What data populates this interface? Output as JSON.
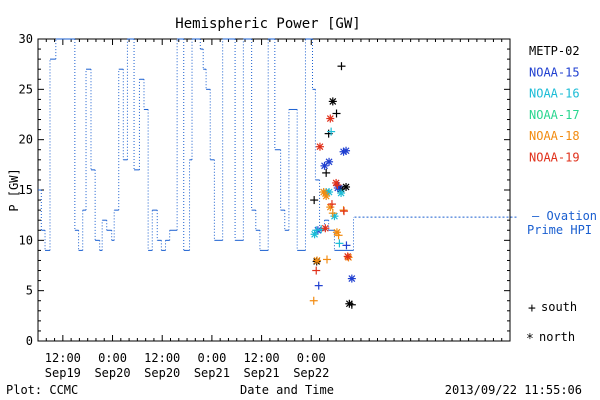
{
  "chart_data": {
    "type": "line",
    "title": "Hemispheric Power [GW]",
    "ylabel": "P [GW]",
    "xlabel": "Date and Time",
    "ylim": [
      0,
      30
    ],
    "yticks": [
      0,
      5,
      10,
      15,
      20,
      25,
      30
    ],
    "xlim_hours": [
      -6,
      108
    ],
    "x_unit": "hours after 2013/09/19 12:00",
    "xticks": [
      {
        "h": 0,
        "time": "12:00",
        "date": "Sep19"
      },
      {
        "h": 12,
        "time": "0:00",
        "date": "Sep20"
      },
      {
        "h": 24,
        "time": "12:00",
        "date": "Sep20"
      },
      {
        "h": 36,
        "time": "0:00",
        "date": "Sep21"
      },
      {
        "h": 48,
        "time": "12:00",
        "date": "Sep21"
      },
      {
        "h": 60,
        "time": "0:00",
        "date": "Sep22"
      }
    ],
    "ovation": {
      "name": "Ovation Prime HPI",
      "label_line1": "– Ovation",
      "label_line2": "Prime HPI",
      "color": "#1a5fd0",
      "current_value": 12.3,
      "steps": [
        [
          -6,
          15
        ],
        [
          -5.2,
          11
        ],
        [
          -4.3,
          9
        ],
        [
          -3.1,
          28
        ],
        [
          -1.7,
          30
        ],
        [
          0.5,
          30
        ],
        [
          2.9,
          11
        ],
        [
          3.8,
          9
        ],
        [
          4.8,
          13
        ],
        [
          5.6,
          27
        ],
        [
          6.8,
          17
        ],
        [
          7.8,
          10
        ],
        [
          8.9,
          9
        ],
        [
          9.5,
          12
        ],
        [
          10.6,
          11
        ],
        [
          11.8,
          10
        ],
        [
          12.4,
          13
        ],
        [
          13.5,
          27
        ],
        [
          14.6,
          18
        ],
        [
          15.6,
          30
        ],
        [
          17.2,
          17
        ],
        [
          18.5,
          26
        ],
        [
          19.6,
          23
        ],
        [
          20.6,
          9
        ],
        [
          21.6,
          13
        ],
        [
          22.8,
          10
        ],
        [
          23.8,
          9
        ],
        [
          24.8,
          10
        ],
        [
          25.8,
          11
        ],
        [
          27.6,
          30
        ],
        [
          29.2,
          9
        ],
        [
          30.6,
          18
        ],
        [
          31.2,
          30
        ],
        [
          33.2,
          29
        ],
        [
          33.9,
          27
        ],
        [
          34.6,
          25
        ],
        [
          35.6,
          18
        ],
        [
          36.6,
          10
        ],
        [
          38.6,
          30
        ],
        [
          41.6,
          10
        ],
        [
          43.6,
          30
        ],
        [
          45.6,
          13
        ],
        [
          46.6,
          11
        ],
        [
          47.6,
          9
        ],
        [
          49.6,
          30
        ],
        [
          51.2,
          19
        ],
        [
          52.6,
          13
        ],
        [
          53.6,
          11
        ],
        [
          54.6,
          23
        ],
        [
          56.6,
          9
        ],
        [
          58.6,
          30
        ],
        [
          60.3,
          25
        ],
        [
          61.0,
          16
        ],
        [
          62.0,
          11
        ],
        [
          63.2,
          12
        ],
        [
          64.2,
          11
        ],
        [
          65.6,
          9
        ],
        [
          70.2,
          12.3
        ]
      ]
    },
    "series": [
      {
        "name": "METP-02",
        "color": "#000000",
        "south": [
          [
            60.7,
            14.0
          ],
          [
            63.6,
            16.7
          ],
          [
            64.2,
            20.6
          ],
          [
            66.1,
            22.6
          ],
          [
            67.3,
            27.3
          ],
          [
            67.0,
            15.1
          ],
          [
            69.8,
            3.6
          ]
        ],
        "north": [
          [
            61.3,
            7.9
          ],
          [
            65.2,
            23.8
          ],
          [
            67.2,
            15.1
          ],
          [
            68.4,
            15.3
          ],
          [
            69.2,
            3.7
          ]
        ]
      },
      {
        "name": "NOAA-15",
        "color": "#1f3fd0",
        "south": [
          [
            61.8,
            5.5
          ],
          [
            66.6,
            15.4
          ],
          [
            68.5,
            9.5
          ]
        ],
        "north": [
          [
            61.6,
            11.0
          ],
          [
            63.2,
            17.4
          ],
          [
            64.3,
            17.8
          ],
          [
            66.4,
            15.2
          ],
          [
            67.8,
            18.8
          ],
          [
            68.4,
            18.9
          ],
          [
            69.8,
            6.2
          ]
        ]
      },
      {
        "name": "NOAA-16",
        "color": "#1bbcd6",
        "south": [
          [
            61.2,
            11.0
          ],
          [
            62.4,
            11.1
          ],
          [
            64.8,
            20.8
          ],
          [
            66.8,
            9.7
          ]
        ],
        "north": [
          [
            60.8,
            10.6
          ],
          [
            63.6,
            14.8
          ],
          [
            64.3,
            14.8
          ],
          [
            65.6,
            12.4
          ],
          [
            67.2,
            14.7
          ]
        ]
      },
      {
        "name": "NOAA-17",
        "color": "#2ad690",
        "south": [],
        "north": []
      },
      {
        "name": "NOAA-18",
        "color": "#f28b10",
        "south": [
          [
            60.6,
            4.0
          ],
          [
            63.8,
            8.1
          ],
          [
            65.2,
            12.7
          ],
          [
            66.6,
            10.5
          ],
          [
            67.8,
            13.0
          ]
        ],
        "north": [
          [
            61.4,
            8.0
          ],
          [
            63.0,
            14.8
          ],
          [
            63.6,
            14.4
          ],
          [
            64.6,
            13.3
          ],
          [
            66.2,
            10.8
          ],
          [
            69.0,
            8.3
          ]
        ]
      },
      {
        "name": "NOAA-19",
        "color": "#e0301a",
        "south": [
          [
            61.2,
            7.0
          ],
          [
            65.0,
            13.6
          ],
          [
            66.3,
            15.5
          ],
          [
            67.9,
            12.9
          ]
        ],
        "north": [
          [
            62.1,
            19.3
          ],
          [
            64.6,
            22.1
          ],
          [
            63.4,
            11.2
          ],
          [
            66.0,
            15.7
          ],
          [
            68.8,
            8.4
          ]
        ]
      }
    ],
    "markers_legend": [
      {
        "symbol": "+",
        "label": "south"
      },
      {
        "symbol": "*",
        "label": "north"
      }
    ],
    "footer_left": "Plot: CCMC",
    "footer_right": "2013/09/22 11:55:06"
  }
}
